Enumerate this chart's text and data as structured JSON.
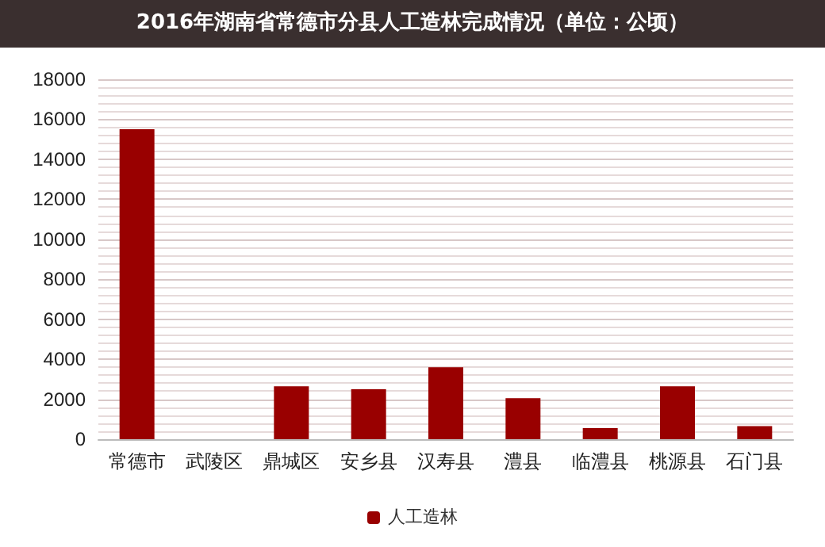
{
  "chart_data": {
    "type": "bar",
    "title": "2016年湖南省常德市分县人工造林完成情况（单位：公顷）",
    "categories": [
      "常德市",
      "武陵区",
      "鼎城区",
      "安乡县",
      "汉寿县",
      "澧县",
      "临澧县",
      "桃源县",
      "石门县"
    ],
    "series": [
      {
        "name": "人工造林",
        "color": "#990000",
        "values": [
          15500,
          0,
          2650,
          2500,
          3600,
          2050,
          560,
          2650,
          650
        ]
      }
    ],
    "ylim": [
      0,
      18000
    ],
    "yticks": [
      0,
      2000,
      4000,
      6000,
      8000,
      10000,
      12000,
      14000,
      16000,
      18000
    ],
    "grid": true,
    "legend": "bottom"
  }
}
